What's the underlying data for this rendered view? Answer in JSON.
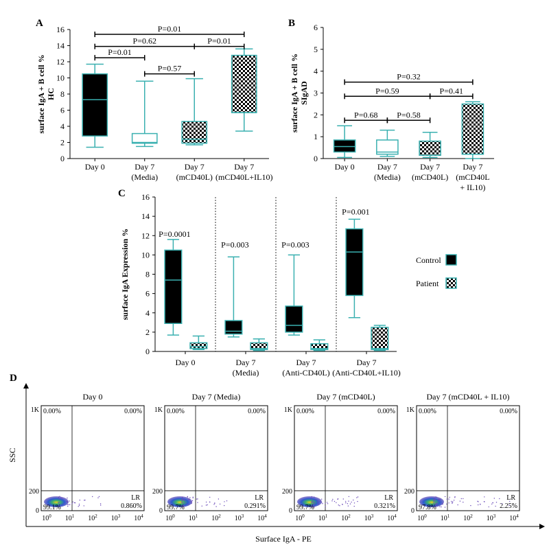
{
  "colors": {
    "teal": "#3ab0b0",
    "box_dark": "#000000",
    "checker_dark": "#000000",
    "checker_light": "#ffffff"
  },
  "chart_data": [
    {
      "panel": "A",
      "type": "box",
      "ylabel_line1": "surface IgA + B cell %",
      "ylabel_line2": "HC",
      "ylim": [
        0,
        16
      ],
      "yticks": [
        "0",
        "2",
        "4",
        "6",
        "8",
        "10",
        "12",
        "14",
        "16"
      ],
      "categories": [
        {
          "line1": "Day 0",
          "line2": ""
        },
        {
          "line1": "Day 7",
          "line2": "(Media)"
        },
        {
          "line1": "Day 7",
          "line2": "(mCD40L)"
        },
        {
          "line1": "Day 7",
          "line2": "(mCD40L+IL10)"
        }
      ],
      "boxes": [
        {
          "fill": "solid",
          "min": 1.4,
          "q1": 2.8,
          "median": 7.3,
          "q3": 10.5,
          "max": 11.7
        },
        {
          "fill": "white",
          "min": 1.5,
          "q1": 1.9,
          "median": 2.0,
          "q3": 3.1,
          "max": 9.6
        },
        {
          "fill": "checker",
          "min": 1.7,
          "q1": 1.9,
          "median": 2.4,
          "q3": 4.6,
          "max": 9.9
        },
        {
          "fill": "checker",
          "min": 3.4,
          "q1": 5.7,
          "median": 5.7,
          "q3": 12.8,
          "max": 13.6
        }
      ],
      "annotations": [
        {
          "from": 0,
          "to": 3,
          "level": 15.4,
          "text": "P=0.01"
        },
        {
          "from": 0,
          "to": 2,
          "level": 13.9,
          "text": "P=0.62"
        },
        {
          "from": 2,
          "to": 3,
          "level": 13.9,
          "text": "P=0.01"
        },
        {
          "from": 0,
          "to": 1,
          "level": 12.5,
          "text": "P=0.01"
        },
        {
          "from": 1,
          "to": 2,
          "level": 10.5,
          "text": "P=0.57"
        }
      ]
    },
    {
      "panel": "B",
      "type": "box",
      "ylabel_line1": "surface IgA + B cell %",
      "ylabel_line2": "SIgAD",
      "ylim": [
        0,
        6
      ],
      "yticks": [
        "0",
        "1",
        "2",
        "3",
        "4",
        "5",
        "6"
      ],
      "categories": [
        {
          "line1": "Day 0",
          "line2": "",
          "line3": ""
        },
        {
          "line1": "Day 7",
          "line2": "(Media)",
          "line3": ""
        },
        {
          "line1": "Day 7",
          "line2": "(mCD40L)",
          "line3": ""
        },
        {
          "line1": "Day 7",
          "line2": "(mCD40L",
          "line3": "+ IL10)"
        }
      ],
      "boxes": [
        {
          "fill": "solid",
          "min": 0.05,
          "q1": 0.3,
          "median": 0.55,
          "q3": 0.85,
          "max": 1.5
        },
        {
          "fill": "white",
          "min": 0.1,
          "q1": 0.2,
          "median": 0.3,
          "q3": 0.85,
          "max": 1.3
        },
        {
          "fill": "checker",
          "min": 0.05,
          "q1": 0.15,
          "median": 0.15,
          "q3": 0.8,
          "max": 1.2
        },
        {
          "fill": "checker",
          "min": 0.0,
          "q1": 0.2,
          "median": 0.2,
          "q3": 2.5,
          "max": 2.6
        }
      ],
      "annotations": [
        {
          "from": 0,
          "to": 3,
          "level": 3.5,
          "text": "P=0.32"
        },
        {
          "from": 0,
          "to": 2,
          "level": 2.85,
          "text": "P=0.59"
        },
        {
          "from": 2,
          "to": 3,
          "level": 2.85,
          "text": "P=0.41"
        },
        {
          "from": 0,
          "to": 1,
          "level": 1.75,
          "text": "P=0.68"
        },
        {
          "from": 1,
          "to": 2,
          "level": 1.75,
          "text": "P=0.58"
        }
      ]
    },
    {
      "panel": "C",
      "type": "box",
      "ylabel": "surface IgA Expression %",
      "ylim": [
        0,
        16
      ],
      "yticks": [
        "0",
        "2",
        "4",
        "6",
        "8",
        "10",
        "12",
        "14",
        "16"
      ],
      "groups": [
        {
          "line1": "Day 0",
          "line2": "",
          "pvalue": "P=0.0001",
          "p_level": 11.6,
          "control": {
            "min": 1.7,
            "q1": 2.9,
            "median": 7.4,
            "q3": 10.5,
            "max": 11.6
          },
          "patient": {
            "min": 0.2,
            "q1": 0.3,
            "median": 0.5,
            "q3": 0.9,
            "max": 1.6
          }
        },
        {
          "line1": "Day 7",
          "line2": "(Media)",
          "pvalue": "P=0.003",
          "p_level": 10.5,
          "control": {
            "min": 1.5,
            "q1": 1.8,
            "median": 2.1,
            "q3": 3.2,
            "max": 9.8
          },
          "patient": {
            "min": 0.1,
            "q1": 0.2,
            "median": 0.3,
            "q3": 0.9,
            "max": 1.3
          }
        },
        {
          "line1": "Day 7",
          "line2": "(Anti-CD40L)",
          "pvalue": "P=0.003",
          "p_level": 10.5,
          "control": {
            "min": 1.7,
            "q1": 2.0,
            "median": 2.7,
            "q3": 4.7,
            "max": 10.0
          },
          "patient": {
            "min": 0.1,
            "q1": 0.2,
            "median": 0.3,
            "q3": 0.8,
            "max": 1.2
          }
        },
        {
          "line1": "Day 7",
          "line2": "(Anti-CD40L+IL10)",
          "pvalue": "P=0.001",
          "p_level": 13.9,
          "control": {
            "min": 3.5,
            "q1": 5.8,
            "median": 10.3,
            "q3": 12.7,
            "max": 13.7
          },
          "patient": {
            "min": 0.1,
            "q1": 0.2,
            "median": 0.3,
            "q3": 2.5,
            "max": 2.7
          }
        }
      ],
      "legend": [
        {
          "label": "Control",
          "fill": "solid"
        },
        {
          "label": "Patient",
          "fill": "checker"
        }
      ]
    },
    {
      "panel": "D",
      "type": "scatter",
      "ylabel": "SSC",
      "xlabel": "Surface IgA - PE",
      "ytick_labels": [
        "0",
        "200",
        "1K"
      ],
      "ytick_values": [
        0,
        200,
        1000
      ],
      "xtick_bases": [
        "10",
        "10",
        "10",
        "10",
        "10"
      ],
      "xtick_exps": [
        "0",
        "1",
        "2",
        "3",
        "4"
      ],
      "plots": [
        {
          "title": "Day 0",
          "ul": "0.00%",
          "ur": "0.00%",
          "ll": "99.1%",
          "lr_label": "LR",
          "lr": "0.860%"
        },
        {
          "title": "Day 7 (Media)",
          "ul": "0.00%",
          "ur": "0.00%",
          "ll": "99.7%",
          "lr_label": "LR",
          "lr": "0.291%"
        },
        {
          "title": "Day 7 (mCD40L)",
          "ul": "0.00%",
          "ur": "0.00%",
          "ll": "99.7%",
          "lr_label": "LR",
          "lr": "0.321%"
        },
        {
          "title": "Day 7 (mCD40L + IL10)",
          "ul": "0.00%",
          "ur": "0.00%",
          "ll": "97.8%",
          "lr_label": "LR",
          "lr": "2.25%"
        }
      ]
    }
  ],
  "panel_letters": {
    "a": "A",
    "b": "B",
    "c": "C",
    "d": "D"
  }
}
